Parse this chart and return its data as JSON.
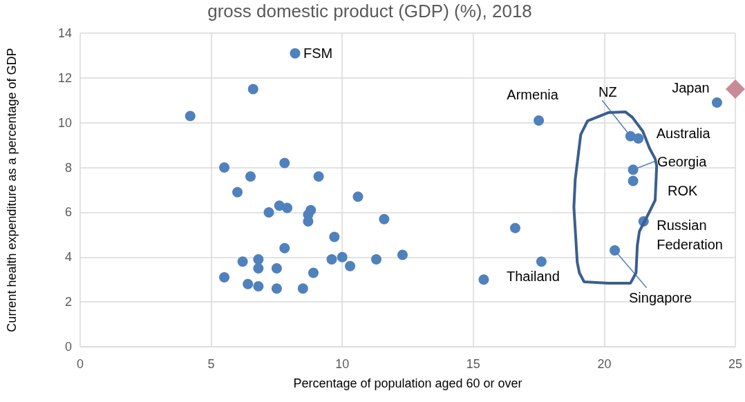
{
  "chart_data": {
    "type": "scatter",
    "title": "gross domestic product (GDP) (%), 2018",
    "xlabel": "Percentage of population aged 60 or over",
    "ylabel": "Current health expenditure as a percentage of GDP",
    "xlim": [
      0,
      25
    ],
    "xticks": [
      0,
      5,
      10,
      15,
      20,
      25
    ],
    "ylim": [
      0,
      14
    ],
    "yticks": [
      0,
      2,
      4,
      6,
      8,
      10,
      12,
      14
    ],
    "grid": true,
    "marker": "circle",
    "series": [
      {
        "color": "#4f81bd",
        "x": [
          4.2,
          6.6,
          8.2,
          5.5,
          6.5,
          7.8,
          9.1,
          6.0,
          10.6,
          7.6,
          7.9,
          7.2,
          8.8,
          8.7,
          8.7,
          11.6,
          9.7,
          7.8,
          6.8,
          6.2,
          6.8,
          7.5,
          5.5,
          8.9,
          6.4,
          6.8,
          7.5,
          8.5,
          9.6,
          10.0,
          10.3,
          11.3,
          12.3,
          15.4,
          16.6,
          17.6,
          17.5,
          21.0,
          21.3,
          21.1,
          21.1,
          21.5,
          20.4,
          24.3
        ],
        "values": [
          10.3,
          11.5,
          13.1,
          8.0,
          7.6,
          8.2,
          7.6,
          6.9,
          6.7,
          6.3,
          6.2,
          6.0,
          6.1,
          5.9,
          5.6,
          5.7,
          4.9,
          4.4,
          3.9,
          3.8,
          3.5,
          3.5,
          3.1,
          3.3,
          2.8,
          2.7,
          2.6,
          2.6,
          3.9,
          4.0,
          3.6,
          3.9,
          4.1,
          3.0,
          5.3,
          3.8,
          10.1,
          9.4,
          9.3,
          7.9,
          7.4,
          5.6,
          4.3,
          10.9
        ]
      },
      {
        "color": "#c98a97",
        "marker": "diamond",
        "x": [
          25
        ],
        "values": [
          11.5
        ]
      }
    ],
    "annotations": [
      {
        "text": "FSM",
        "x": 8.2,
        "y": 13.1
      },
      {
        "text": "Armenia",
        "x": 17.5,
        "y": 10.1
      },
      {
        "text": "NZ",
        "x": 21.0,
        "y": 9.4
      },
      {
        "text": "Australia",
        "x": 21.3,
        "y": 9.3
      },
      {
        "text": "Georgia",
        "x": 21.1,
        "y": 7.9
      },
      {
        "text": "ROK",
        "x": 21.1,
        "y": 7.4
      },
      {
        "text": "Russian Federation",
        "x": 21.5,
        "y": 5.6
      },
      {
        "text": "Singapore",
        "x": 20.4,
        "y": 4.3
      },
      {
        "text": "Japan",
        "x": 24.3,
        "y": 10.9
      },
      {
        "text": "Thailand",
        "x": 17.6,
        "y": 3.8
      }
    ]
  }
}
